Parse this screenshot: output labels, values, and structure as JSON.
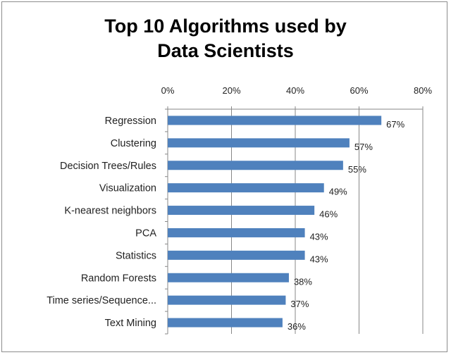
{
  "chart_data": {
    "type": "bar",
    "orientation": "horizontal",
    "title_lines": [
      "Top 10 Algorithms used by",
      "Data Scientists"
    ],
    "categories": [
      "Regression",
      "Clustering",
      "Decision Trees/Rules",
      "Visualization",
      "K-nearest neighbors",
      "PCA",
      "Statistics",
      "Random Forests",
      "Time series/Sequence...",
      "Text Mining"
    ],
    "values": [
      67,
      57,
      55,
      49,
      46,
      43,
      43,
      38,
      37,
      36
    ],
    "data_labels": [
      "67%",
      "57%",
      "55%",
      "49%",
      "46%",
      "43%",
      "43%",
      "38%",
      "37%",
      "36%"
    ],
    "xlim": [
      0,
      80
    ],
    "xticks": [
      0,
      20,
      40,
      60,
      80
    ],
    "xtick_labels": [
      "0%",
      "20%",
      "40%",
      "60%",
      "80%"
    ],
    "x_axis_position": "top",
    "grid": true,
    "legend": "none",
    "bar_color": "#4f81bd"
  }
}
